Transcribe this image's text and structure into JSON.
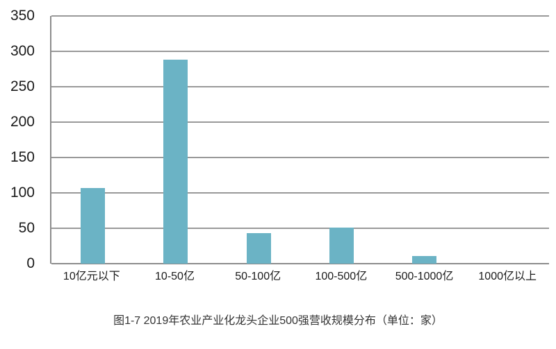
{
  "figure": {
    "caption": "图1-7 2019年农业产业化龙头企业500强营收规模分布（单位：家）"
  },
  "chart_data": {
    "type": "bar",
    "categories": [
      "10亿元以下",
      "10-50亿",
      "50-100亿",
      "100-500亿",
      "500-1000亿",
      "1000亿以上"
    ],
    "values": [
      107,
      288,
      43,
      51,
      11,
      0
    ],
    "title": "图1-7 2019年农业产业化龙头企业500强营收规模分布（单位：家）",
    "xlabel": "",
    "ylabel": "",
    "ylim": [
      0,
      350
    ],
    "yticks": [
      0,
      50,
      100,
      150,
      200,
      250,
      300,
      350
    ],
    "grid": true,
    "legend": false,
    "unit_label": "家",
    "bar_color": "#6bb3c5",
    "gridline_color": "#999999",
    "axis_color": "#8c8c8c",
    "label_color": "#1a1a1a"
  }
}
